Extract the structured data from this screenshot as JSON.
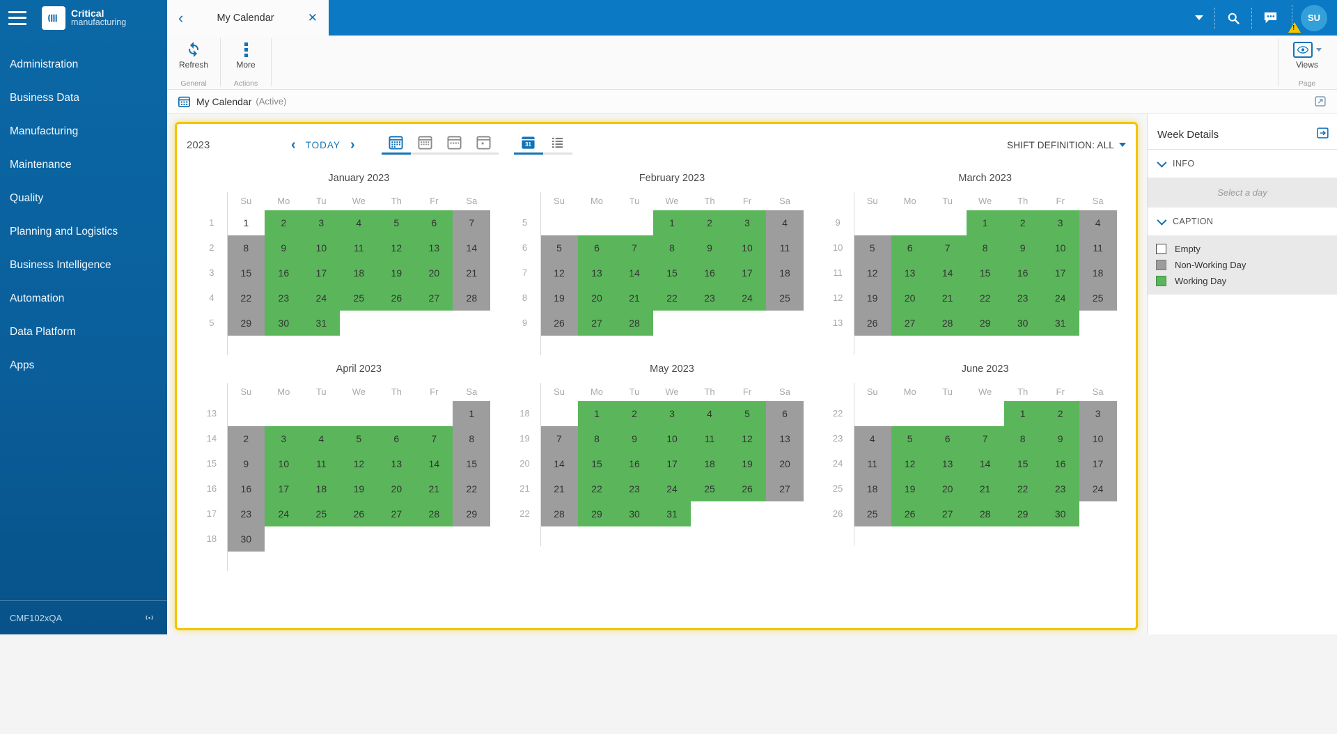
{
  "sidebar": {
    "brand": {
      "name_top": "Critical",
      "name_bottom": "manufacturing"
    },
    "items": [
      "Administration",
      "Business Data",
      "Manufacturing",
      "Maintenance",
      "Quality",
      "Planning and Logistics",
      "Business Intelligence",
      "Automation",
      "Data Platform",
      "Apps"
    ],
    "footer_env": "CMF102xQA"
  },
  "topbar": {
    "tab_title": "My Calendar",
    "avatar_initials": "SU"
  },
  "ribbon": {
    "refresh_label": "Refresh",
    "more_label": "More",
    "group_general": "General",
    "group_actions": "Actions",
    "views_label": "Views",
    "group_page": "Page"
  },
  "page_header": {
    "title": "My Calendar",
    "status": "(Active)"
  },
  "calendar": {
    "year": "2023",
    "today_label": "TODAY",
    "shift_definition_label": "SHIFT DEFINITION: ALL",
    "day_headers": [
      "Su",
      "Mo",
      "Tu",
      "We",
      "Th",
      "Fr",
      "Sa"
    ],
    "colors": {
      "working": "#5bb65b",
      "non_working": "#9d9d9d",
      "accent": "#1272b6",
      "panel_border": "#f2c500"
    },
    "legend": [
      {
        "label": "Empty",
        "type": "empty"
      },
      {
        "label": "Non-Working Day",
        "type": "off"
      },
      {
        "label": "Working Day",
        "type": "work"
      }
    ],
    "side_panel": {
      "title": "Week Details",
      "info_label": "INFO",
      "info_placeholder": "Select a day",
      "caption_label": "CAPTION"
    },
    "months": [
      {
        "title": "January 2023",
        "weeks": [
          {
            "num": 1,
            "days": [
              [
                1,
                "e"
              ],
              [
                2,
                "w"
              ],
              [
                3,
                "w"
              ],
              [
                4,
                "w"
              ],
              [
                5,
                "w"
              ],
              [
                6,
                "w"
              ],
              [
                7,
                "o"
              ]
            ]
          },
          {
            "num": 2,
            "days": [
              [
                8,
                "o"
              ],
              [
                9,
                "w"
              ],
              [
                10,
                "w"
              ],
              [
                11,
                "w"
              ],
              [
                12,
                "w"
              ],
              [
                13,
                "w"
              ],
              [
                14,
                "o"
              ]
            ]
          },
          {
            "num": 3,
            "days": [
              [
                15,
                "o"
              ],
              [
                16,
                "w"
              ],
              [
                17,
                "w"
              ],
              [
                18,
                "w"
              ],
              [
                19,
                "w"
              ],
              [
                20,
                "w"
              ],
              [
                21,
                "o"
              ]
            ]
          },
          {
            "num": 4,
            "days": [
              [
                22,
                "o"
              ],
              [
                23,
                "w"
              ],
              [
                24,
                "w"
              ],
              [
                25,
                "w"
              ],
              [
                26,
                "w"
              ],
              [
                27,
                "w"
              ],
              [
                28,
                "o"
              ]
            ]
          },
          {
            "num": 5,
            "days": [
              [
                29,
                "o"
              ],
              [
                30,
                "w"
              ],
              [
                31,
                "w"
              ],
              null,
              null,
              null,
              null
            ]
          }
        ]
      },
      {
        "title": "February 2023",
        "weeks": [
          {
            "num": 5,
            "days": [
              null,
              null,
              null,
              [
                1,
                "w"
              ],
              [
                2,
                "w"
              ],
              [
                3,
                "w"
              ],
              [
                4,
                "o"
              ]
            ]
          },
          {
            "num": 6,
            "days": [
              [
                5,
                "o"
              ],
              [
                6,
                "w"
              ],
              [
                7,
                "w"
              ],
              [
                8,
                "w"
              ],
              [
                9,
                "w"
              ],
              [
                10,
                "w"
              ],
              [
                11,
                "o"
              ]
            ]
          },
          {
            "num": 7,
            "days": [
              [
                12,
                "o"
              ],
              [
                13,
                "w"
              ],
              [
                14,
                "w"
              ],
              [
                15,
                "w"
              ],
              [
                16,
                "w"
              ],
              [
                17,
                "w"
              ],
              [
                18,
                "o"
              ]
            ]
          },
          {
            "num": 8,
            "days": [
              [
                19,
                "o"
              ],
              [
                20,
                "w"
              ],
              [
                21,
                "w"
              ],
              [
                22,
                "w"
              ],
              [
                23,
                "w"
              ],
              [
                24,
                "w"
              ],
              [
                25,
                "o"
              ]
            ]
          },
          {
            "num": 9,
            "days": [
              [
                26,
                "o"
              ],
              [
                27,
                "w"
              ],
              [
                28,
                "w"
              ],
              null,
              null,
              null,
              null
            ]
          }
        ]
      },
      {
        "title": "March 2023",
        "weeks": [
          {
            "num": 9,
            "days": [
              null,
              null,
              null,
              [
                1,
                "w"
              ],
              [
                2,
                "w"
              ],
              [
                3,
                "w"
              ],
              [
                4,
                "o"
              ]
            ]
          },
          {
            "num": 10,
            "days": [
              [
                5,
                "o"
              ],
              [
                6,
                "w"
              ],
              [
                7,
                "w"
              ],
              [
                8,
                "w"
              ],
              [
                9,
                "w"
              ],
              [
                10,
                "w"
              ],
              [
                11,
                "o"
              ]
            ]
          },
          {
            "num": 11,
            "days": [
              [
                12,
                "o"
              ],
              [
                13,
                "w"
              ],
              [
                14,
                "w"
              ],
              [
                15,
                "w"
              ],
              [
                16,
                "w"
              ],
              [
                17,
                "w"
              ],
              [
                18,
                "o"
              ]
            ]
          },
          {
            "num": 12,
            "days": [
              [
                19,
                "o"
              ],
              [
                20,
                "w"
              ],
              [
                21,
                "w"
              ],
              [
                22,
                "w"
              ],
              [
                23,
                "w"
              ],
              [
                24,
                "w"
              ],
              [
                25,
                "o"
              ]
            ]
          },
          {
            "num": 13,
            "days": [
              [
                26,
                "o"
              ],
              [
                27,
                "w"
              ],
              [
                28,
                "w"
              ],
              [
                29,
                "w"
              ],
              [
                30,
                "w"
              ],
              [
                31,
                "w"
              ],
              null
            ]
          }
        ]
      },
      {
        "title": "April 2023",
        "weeks": [
          {
            "num": 13,
            "days": [
              null,
              null,
              null,
              null,
              null,
              null,
              [
                1,
                "o"
              ]
            ]
          },
          {
            "num": 14,
            "days": [
              [
                2,
                "o"
              ],
              [
                3,
                "w"
              ],
              [
                4,
                "w"
              ],
              [
                5,
                "w"
              ],
              [
                6,
                "w"
              ],
              [
                7,
                "w"
              ],
              [
                8,
                "o"
              ]
            ]
          },
          {
            "num": 15,
            "days": [
              [
                9,
                "o"
              ],
              [
                10,
                "w"
              ],
              [
                11,
                "w"
              ],
              [
                12,
                "w"
              ],
              [
                13,
                "w"
              ],
              [
                14,
                "w"
              ],
              [
                15,
                "o"
              ]
            ]
          },
          {
            "num": 16,
            "days": [
              [
                16,
                "o"
              ],
              [
                17,
                "w"
              ],
              [
                18,
                "w"
              ],
              [
                19,
                "w"
              ],
              [
                20,
                "w"
              ],
              [
                21,
                "w"
              ],
              [
                22,
                "o"
              ]
            ]
          },
          {
            "num": 17,
            "days": [
              [
                23,
                "o"
              ],
              [
                24,
                "w"
              ],
              [
                25,
                "w"
              ],
              [
                26,
                "w"
              ],
              [
                27,
                "w"
              ],
              [
                28,
                "w"
              ],
              [
                29,
                "o"
              ]
            ]
          },
          {
            "num": 18,
            "days": [
              [
                30,
                "o"
              ],
              null,
              null,
              null,
              null,
              null,
              null
            ]
          }
        ]
      },
      {
        "title": "May 2023",
        "weeks": [
          {
            "num": 18,
            "days": [
              null,
              [
                1,
                "w"
              ],
              [
                2,
                "w"
              ],
              [
                3,
                "w"
              ],
              [
                4,
                "w"
              ],
              [
                5,
                "w"
              ],
              [
                6,
                "o"
              ]
            ]
          },
          {
            "num": 19,
            "days": [
              [
                7,
                "o"
              ],
              [
                8,
                "w"
              ],
              [
                9,
                "w"
              ],
              [
                10,
                "w"
              ],
              [
                11,
                "w"
              ],
              [
                12,
                "w"
              ],
              [
                13,
                "o"
              ]
            ]
          },
          {
            "num": 20,
            "days": [
              [
                14,
                "o"
              ],
              [
                15,
                "w"
              ],
              [
                16,
                "w"
              ],
              [
                17,
                "w"
              ],
              [
                18,
                "w"
              ],
              [
                19,
                "w"
              ],
              [
                20,
                "o"
              ]
            ]
          },
          {
            "num": 21,
            "days": [
              [
                21,
                "o"
              ],
              [
                22,
                "w"
              ],
              [
                23,
                "w"
              ],
              [
                24,
                "w"
              ],
              [
                25,
                "w"
              ],
              [
                26,
                "w"
              ],
              [
                27,
                "o"
              ]
            ]
          },
          {
            "num": 22,
            "days": [
              [
                28,
                "o"
              ],
              [
                29,
                "w"
              ],
              [
                30,
                "w"
              ],
              [
                31,
                "w"
              ],
              null,
              null,
              null
            ]
          }
        ]
      },
      {
        "title": "June 2023",
        "weeks": [
          {
            "num": 22,
            "days": [
              null,
              null,
              null,
              null,
              [
                1,
                "w"
              ],
              [
                2,
                "w"
              ],
              [
                3,
                "o"
              ]
            ]
          },
          {
            "num": 23,
            "days": [
              [
                4,
                "o"
              ],
              [
                5,
                "w"
              ],
              [
                6,
                "w"
              ],
              [
                7,
                "w"
              ],
              [
                8,
                "w"
              ],
              [
                9,
                "w"
              ],
              [
                10,
                "o"
              ]
            ]
          },
          {
            "num": 24,
            "days": [
              [
                11,
                "o"
              ],
              [
                12,
                "w"
              ],
              [
                13,
                "w"
              ],
              [
                14,
                "w"
              ],
              [
                15,
                "w"
              ],
              [
                16,
                "w"
              ],
              [
                17,
                "o"
              ]
            ]
          },
          {
            "num": 25,
            "days": [
              [
                18,
                "o"
              ],
              [
                19,
                "w"
              ],
              [
                20,
                "w"
              ],
              [
                21,
                "w"
              ],
              [
                22,
                "w"
              ],
              [
                23,
                "w"
              ],
              [
                24,
                "o"
              ]
            ]
          },
          {
            "num": 26,
            "days": [
              [
                25,
                "o"
              ],
              [
                26,
                "w"
              ],
              [
                27,
                "w"
              ],
              [
                28,
                "w"
              ],
              [
                29,
                "w"
              ],
              [
                30,
                "w"
              ],
              null
            ]
          }
        ]
      }
    ]
  }
}
